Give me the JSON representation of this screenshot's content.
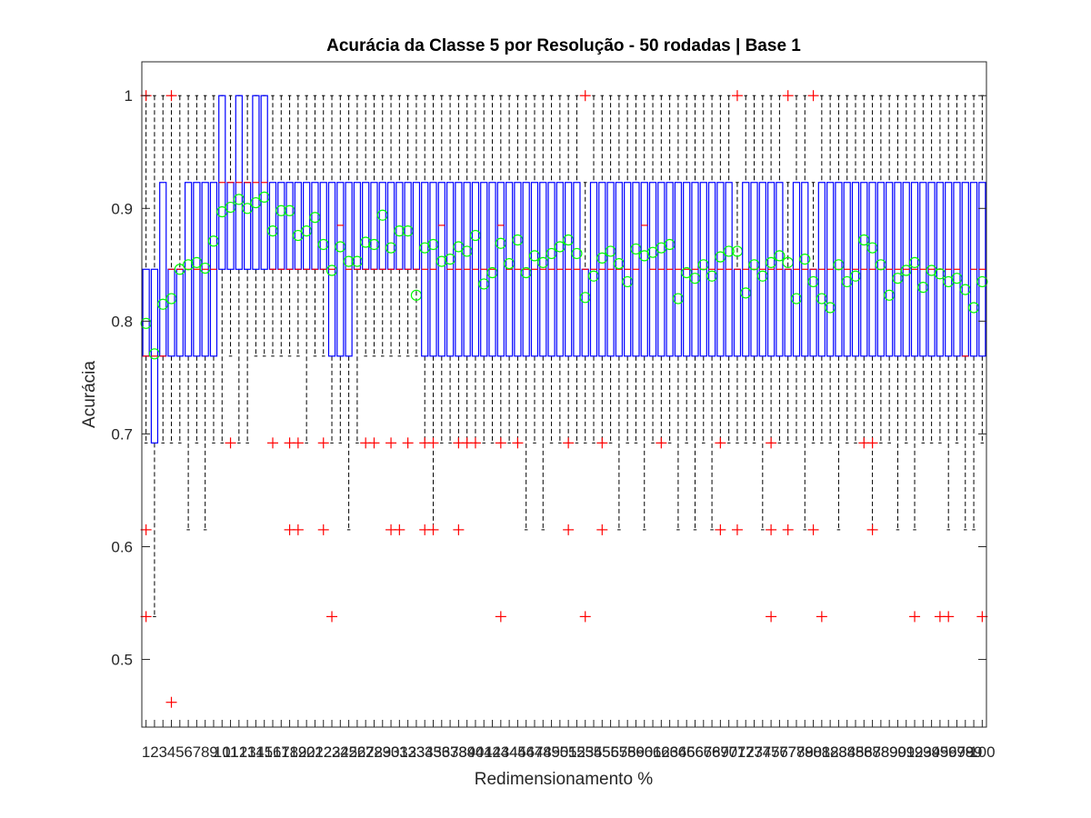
{
  "chart_data": {
    "type": "box",
    "title": "Acurácia da Classe 5 por Resolução - 50 rodadas | Base 1",
    "xlabel": "Redimensionamento %",
    "ylabel": "Acurácia",
    "ylim": [
      0.44,
      1.03
    ],
    "yticks": [
      0.5,
      0.6,
      0.7,
      0.8,
      0.9,
      1
    ],
    "ytick_labels": [
      "0.5",
      "0.6",
      "0.7",
      "0.8",
      "0.9",
      "1"
    ],
    "categories": [
      "1",
      "2",
      "3",
      "4",
      "5",
      "6",
      "7",
      "8",
      "9",
      "10",
      "11",
      "12",
      "13",
      "14",
      "15",
      "16",
      "17",
      "18",
      "19",
      "20",
      "21",
      "22",
      "23",
      "24",
      "25",
      "26",
      "27",
      "28",
      "29",
      "30",
      "31",
      "32",
      "33",
      "34",
      "35",
      "36",
      "37",
      "38",
      "39",
      "40",
      "41",
      "42",
      "43",
      "44",
      "45",
      "46",
      "47",
      "48",
      "49",
      "50",
      "51",
      "52",
      "53",
      "54",
      "55",
      "56",
      "57",
      "58",
      "59",
      "60",
      "61",
      "62",
      "63",
      "64",
      "65",
      "66",
      "67",
      "68",
      "69",
      "70",
      "71",
      "72",
      "73",
      "74",
      "75",
      "76",
      "77",
      "78",
      "79",
      "80",
      "81",
      "82",
      "83",
      "84",
      "85",
      "86",
      "87",
      "88",
      "89",
      "90",
      "91",
      "92",
      "93",
      "94",
      "95",
      "96",
      "97",
      "98",
      "99",
      "100"
    ],
    "box_q1": [
      0.769,
      0.692,
      0.769,
      0.769,
      0.769,
      0.769,
      0.769,
      0.769,
      0.769,
      0.846,
      0.846,
      0.846,
      0.846,
      0.846,
      0.846,
      0.846,
      0.846,
      0.846,
      0.846,
      0.846,
      0.846,
      0.846,
      0.769,
      0.769,
      0.769,
      0.846,
      0.846,
      0.846,
      0.846,
      0.846,
      0.846,
      0.846,
      0.846,
      0.769,
      0.769,
      0.769,
      0.769,
      0.769,
      0.769,
      0.769,
      0.769,
      0.769,
      0.769,
      0.769,
      0.769,
      0.769,
      0.769,
      0.769,
      0.769,
      0.769,
      0.769,
      0.769,
      0.769,
      0.769,
      0.769,
      0.769,
      0.769,
      0.769,
      0.769,
      0.769,
      0.769,
      0.769,
      0.769,
      0.769,
      0.769,
      0.769,
      0.769,
      0.769,
      0.769,
      0.769,
      0.769,
      0.769,
      0.769,
      0.769,
      0.769,
      0.769,
      0.769,
      0.769,
      0.769,
      0.769,
      0.769,
      0.769,
      0.769,
      0.769,
      0.769,
      0.769,
      0.769,
      0.769,
      0.769,
      0.769,
      0.769,
      0.769,
      0.769,
      0.769,
      0.769,
      0.769,
      0.769,
      0.769,
      0.769,
      0.769
    ],
    "box_median": [
      0.769,
      0.769,
      0.769,
      0.846,
      0.846,
      0.846,
      0.846,
      0.846,
      0.846,
      0.923,
      0.923,
      0.923,
      0.923,
      0.923,
      0.923,
      0.846,
      0.846,
      0.846,
      0.846,
      0.846,
      0.846,
      0.846,
      0.846,
      0.885,
      0.846,
      0.846,
      0.846,
      0.846,
      0.846,
      0.846,
      0.846,
      0.846,
      0.846,
      0.846,
      0.846,
      0.885,
      0.846,
      0.846,
      0.846,
      0.846,
      0.846,
      0.846,
      0.885,
      0.846,
      0.846,
      0.846,
      0.846,
      0.846,
      0.846,
      0.846,
      0.846,
      0.846,
      0.846,
      0.846,
      0.846,
      0.846,
      0.846,
      0.846,
      0.846,
      0.885,
      0.846,
      0.846,
      0.846,
      0.846,
      0.846,
      0.846,
      0.846,
      0.846,
      0.846,
      0.846,
      0.846,
      0.846,
      0.846,
      0.846,
      0.846,
      0.846,
      0.846,
      0.846,
      0.846,
      0.846,
      0.846,
      0.846,
      0.846,
      0.846,
      0.846,
      0.846,
      0.846,
      0.846,
      0.846,
      0.846,
      0.846,
      0.846,
      0.846,
      0.846,
      0.846,
      0.846,
      0.846,
      0.769,
      0.846,
      0.846
    ],
    "box_q3": [
      0.846,
      0.846,
      0.923,
      0.846,
      0.846,
      0.923,
      0.923,
      0.923,
      0.923,
      1.0,
      0.923,
      1.0,
      0.923,
      1.0,
      1.0,
      0.923,
      0.923,
      0.923,
      0.923,
      0.923,
      0.923,
      0.923,
      0.923,
      0.923,
      0.923,
      0.923,
      0.923,
      0.923,
      0.923,
      0.923,
      0.923,
      0.923,
      0.923,
      0.923,
      0.923,
      0.923,
      0.923,
      0.923,
      0.923,
      0.923,
      0.923,
      0.923,
      0.923,
      0.923,
      0.923,
      0.923,
      0.923,
      0.923,
      0.923,
      0.923,
      0.923,
      0.923,
      0.846,
      0.923,
      0.923,
      0.923,
      0.923,
      0.923,
      0.923,
      0.923,
      0.923,
      0.923,
      0.923,
      0.923,
      0.923,
      0.923,
      0.923,
      0.923,
      0.923,
      0.923,
      0.846,
      0.923,
      0.923,
      0.923,
      0.923,
      0.923,
      0.846,
      0.923,
      0.923,
      0.846,
      0.923,
      0.923,
      0.923,
      0.923,
      0.923,
      0.923,
      0.923,
      0.923,
      0.923,
      0.923,
      0.923,
      0.923,
      0.923,
      0.923,
      0.923,
      0.923,
      0.923,
      0.923,
      0.923,
      0.923
    ],
    "whisker_low": [
      0.692,
      0.538,
      0.692,
      0.692,
      0.692,
      0.615,
      0.692,
      0.615,
      0.692,
      0.692,
      0.769,
      0.692,
      0.692,
      0.769,
      0.769,
      0.769,
      0.769,
      0.769,
      0.769,
      0.692,
      0.769,
      0.769,
      0.692,
      0.692,
      0.615,
      0.692,
      0.769,
      0.769,
      0.769,
      0.769,
      0.769,
      0.769,
      0.769,
      0.692,
      0.615,
      0.692,
      0.692,
      0.692,
      0.692,
      0.692,
      0.692,
      0.692,
      0.692,
      0.692,
      0.692,
      0.615,
      0.692,
      0.615,
      0.692,
      0.692,
      0.692,
      0.692,
      0.692,
      0.692,
      0.692,
      0.692,
      0.615,
      0.692,
      0.692,
      0.615,
      0.692,
      0.692,
      0.692,
      0.615,
      0.692,
      0.615,
      0.692,
      0.615,
      0.692,
      0.692,
      0.692,
      0.692,
      0.692,
      0.615,
      0.692,
      0.692,
      0.692,
      0.692,
      0.615,
      0.692,
      0.692,
      0.692,
      0.615,
      0.692,
      0.692,
      0.692,
      0.615,
      0.692,
      0.692,
      0.615,
      0.692,
      0.615,
      0.692,
      0.692,
      0.692,
      0.615,
      0.692,
      0.615,
      0.615,
      0.692
    ],
    "whisker_high": [
      1.0,
      1.0,
      1.0,
      1.0,
      1.0,
      1.0,
      1.0,
      1.0,
      1.0,
      1.0,
      1.0,
      1.0,
      1.0,
      1.0,
      1.0,
      1.0,
      1.0,
      1.0,
      1.0,
      1.0,
      1.0,
      1.0,
      1.0,
      1.0,
      1.0,
      1.0,
      1.0,
      1.0,
      1.0,
      1.0,
      1.0,
      1.0,
      1.0,
      1.0,
      1.0,
      1.0,
      1.0,
      1.0,
      1.0,
      1.0,
      1.0,
      1.0,
      1.0,
      1.0,
      1.0,
      1.0,
      1.0,
      1.0,
      1.0,
      1.0,
      1.0,
      1.0,
      0.923,
      1.0,
      1.0,
      1.0,
      1.0,
      1.0,
      1.0,
      1.0,
      1.0,
      1.0,
      1.0,
      1.0,
      1.0,
      1.0,
      1.0,
      1.0,
      1.0,
      1.0,
      0.923,
      1.0,
      1.0,
      1.0,
      1.0,
      1.0,
      0.923,
      1.0,
      1.0,
      0.923,
      1.0,
      1.0,
      1.0,
      1.0,
      1.0,
      1.0,
      1.0,
      1.0,
      1.0,
      1.0,
      1.0,
      1.0,
      1.0,
      1.0,
      1.0,
      1.0,
      1.0,
      1.0,
      1.0,
      1.0
    ],
    "means": [
      0.798,
      0.771,
      0.815,
      0.82,
      0.846,
      0.85,
      0.852,
      0.847,
      0.871,
      0.897,
      0.901,
      0.908,
      0.9,
      0.905,
      0.91,
      0.88,
      0.898,
      0.898,
      0.876,
      0.88,
      0.892,
      0.868,
      0.845,
      0.866,
      0.853,
      0.853,
      0.87,
      0.868,
      0.894,
      0.865,
      0.88,
      0.88,
      0.823,
      0.865,
      0.868,
      0.853,
      0.855,
      0.866,
      0.862,
      0.876,
      0.833,
      0.843,
      0.869,
      0.851,
      0.872,
      0.843,
      0.858,
      0.852,
      0.86,
      0.866,
      0.872,
      0.86,
      0.821,
      0.84,
      0.856,
      0.862,
      0.851,
      0.835,
      0.864,
      0.858,
      0.861,
      0.865,
      0.868,
      0.82,
      0.843,
      0.838,
      0.85,
      0.84,
      0.857,
      0.862,
      0.862,
      0.825,
      0.85,
      0.84,
      0.852,
      0.858,
      0.852,
      0.82,
      0.855,
      0.835,
      0.82,
      0.812,
      0.85,
      0.835,
      0.84,
      0.872,
      0.865,
      0.85,
      0.823,
      0.838,
      0.845,
      0.852,
      0.83,
      0.845,
      0.842,
      0.835,
      0.838,
      0.828,
      0.812,
      0.835
    ],
    "outliers": [
      {
        "x": 1,
        "y": 1.0
      },
      {
        "x": 1,
        "y": 0.615
      },
      {
        "x": 1,
        "y": 0.538
      },
      {
        "x": 4,
        "y": 1.0
      },
      {
        "x": 4,
        "y": 0.462
      },
      {
        "x": 11,
        "y": 0.692
      },
      {
        "x": 16,
        "y": 0.692
      },
      {
        "x": 18,
        "y": 0.692
      },
      {
        "x": 18,
        "y": 0.615
      },
      {
        "x": 19,
        "y": 0.692
      },
      {
        "x": 19,
        "y": 0.615
      },
      {
        "x": 22,
        "y": 0.692
      },
      {
        "x": 22,
        "y": 0.615
      },
      {
        "x": 23,
        "y": 0.538
      },
      {
        "x": 27,
        "y": 0.692
      },
      {
        "x": 28,
        "y": 0.692
      },
      {
        "x": 30,
        "y": 0.692
      },
      {
        "x": 30,
        "y": 0.615
      },
      {
        "x": 31,
        "y": 0.615
      },
      {
        "x": 32,
        "y": 0.692
      },
      {
        "x": 34,
        "y": 0.692
      },
      {
        "x": 34,
        "y": 0.615
      },
      {
        "x": 35,
        "y": 0.692
      },
      {
        "x": 35,
        "y": 0.615
      },
      {
        "x": 38,
        "y": 0.692
      },
      {
        "x": 38,
        "y": 0.615
      },
      {
        "x": 39,
        "y": 0.692
      },
      {
        "x": 40,
        "y": 0.692
      },
      {
        "x": 43,
        "y": 0.692
      },
      {
        "x": 43,
        "y": 0.538
      },
      {
        "x": 45,
        "y": 0.692
      },
      {
        "x": 51,
        "y": 0.692
      },
      {
        "x": 51,
        "y": 0.615
      },
      {
        "x": 53,
        "y": 1.0
      },
      {
        "x": 53,
        "y": 0.538
      },
      {
        "x": 55,
        "y": 0.692
      },
      {
        "x": 55,
        "y": 0.615
      },
      {
        "x": 62,
        "y": 0.692
      },
      {
        "x": 69,
        "y": 0.692
      },
      {
        "x": 69,
        "y": 0.615
      },
      {
        "x": 71,
        "y": 1.0
      },
      {
        "x": 71,
        "y": 0.615
      },
      {
        "x": 75,
        "y": 0.692
      },
      {
        "x": 75,
        "y": 0.615
      },
      {
        "x": 75,
        "y": 0.538
      },
      {
        "x": 77,
        "y": 1.0
      },
      {
        "x": 77,
        "y": 0.615
      },
      {
        "x": 80,
        "y": 1.0
      },
      {
        "x": 80,
        "y": 0.615
      },
      {
        "x": 81,
        "y": 0.538
      },
      {
        "x": 86,
        "y": 0.692
      },
      {
        "x": 87,
        "y": 0.692
      },
      {
        "x": 87,
        "y": 0.615
      },
      {
        "x": 92,
        "y": 0.538
      },
      {
        "x": 95,
        "y": 0.538
      },
      {
        "x": 96,
        "y": 0.538
      },
      {
        "x": 100,
        "y": 0.538
      }
    ],
    "colors": {
      "box": "#0000ff",
      "median": "#ff0000",
      "whisker": "#000000",
      "outlier": "#ff0000",
      "mean_marker": "#00ff00"
    },
    "grid": false,
    "legend": "none"
  }
}
